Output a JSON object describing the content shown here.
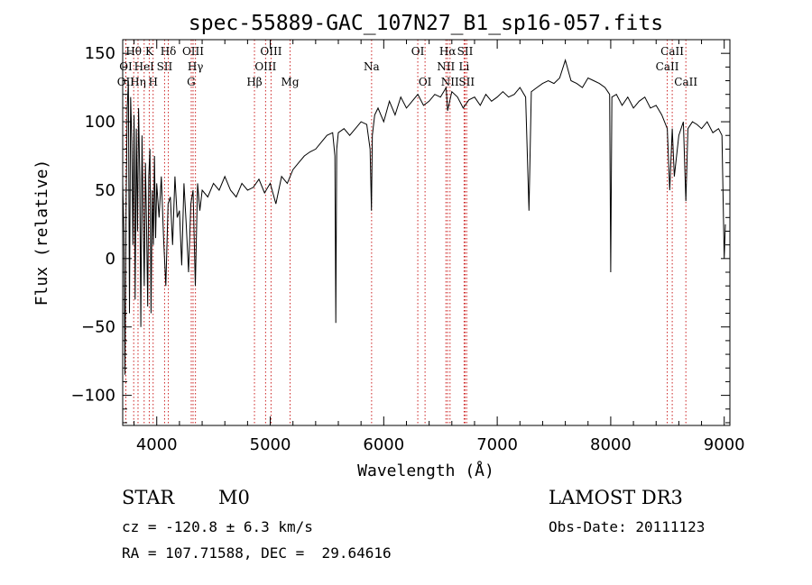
{
  "chart_data": {
    "type": "line",
    "title": "spec-55889-GAC_107N27_B1_sp16-057.fits",
    "xlabel": "Wavelength (Å)",
    "ylabel": "Flux (relative)",
    "xlim": [
      3700,
      9050
    ],
    "ylim": [
      -122,
      160
    ],
    "x_ticks": [
      4000,
      5000,
      6000,
      7000,
      8000,
      9000
    ],
    "y_ticks": [
      -100,
      -50,
      0,
      50,
      100,
      150
    ],
    "grid": false,
    "legend": "none",
    "series": [
      {
        "name": "flux",
        "x": [
          3700,
          3710,
          3720,
          3730,
          3740,
          3750,
          3760,
          3770,
          3780,
          3790,
          3800,
          3810,
          3820,
          3830,
          3840,
          3850,
          3860,
          3870,
          3880,
          3890,
          3900,
          3910,
          3920,
          3930,
          3940,
          3950,
          3960,
          3970,
          3980,
          3990,
          4000,
          4020,
          4040,
          4060,
          4080,
          4100,
          4120,
          4140,
          4160,
          4180,
          4200,
          4220,
          4240,
          4260,
          4280,
          4300,
          4320,
          4340,
          4360,
          4380,
          4400,
          4450,
          4500,
          4550,
          4600,
          4650,
          4700,
          4750,
          4800,
          4850,
          4900,
          4950,
          5000,
          5050,
          5100,
          5150,
          5200,
          5250,
          5300,
          5350,
          5400,
          5450,
          5500,
          5550,
          5570,
          5578,
          5586,
          5600,
          5650,
          5700,
          5750,
          5800,
          5850,
          5880,
          5892,
          5900,
          5920,
          5950,
          6000,
          6050,
          6100,
          6150,
          6200,
          6250,
          6300,
          6350,
          6400,
          6450,
          6500,
          6550,
          6563,
          6600,
          6650,
          6700,
          6750,
          6800,
          6850,
          6900,
          6950,
          7000,
          7050,
          7100,
          7150,
          7200,
          7250,
          7280,
          7300,
          7350,
          7400,
          7450,
          7500,
          7550,
          7600,
          7650,
          7700,
          7750,
          7800,
          7850,
          7900,
          7950,
          7990,
          8000,
          8010,
          8050,
          8100,
          8150,
          8200,
          8250,
          8300,
          8350,
          8400,
          8450,
          8498,
          8520,
          8542,
          8560,
          8600,
          8640,
          8662,
          8680,
          8720,
          8760,
          8800,
          8850,
          8900,
          8950,
          8980,
          9000,
          9010
        ],
        "values": [
          55,
          20,
          -85,
          40,
          110,
          130,
          -40,
          118,
          85,
          10,
          105,
          -30,
          95,
          20,
          110,
          60,
          -50,
          90,
          35,
          -20,
          70,
          25,
          -35,
          60,
          80,
          -40,
          50,
          10,
          75,
          15,
          55,
          30,
          60,
          15,
          -20,
          40,
          45,
          10,
          60,
          30,
          35,
          -5,
          55,
          25,
          -10,
          40,
          50,
          -20,
          55,
          35,
          50,
          45,
          55,
          50,
          60,
          50,
          45,
          55,
          50,
          52,
          58,
          48,
          55,
          40,
          60,
          55,
          65,
          70,
          75,
          78,
          80,
          85,
          90,
          92,
          75,
          -47,
          80,
          92,
          95,
          90,
          95,
          100,
          98,
          80,
          35,
          90,
          105,
          110,
          100,
          115,
          105,
          118,
          110,
          115,
          120,
          112,
          115,
          120,
          118,
          125,
          108,
          122,
          118,
          110,
          116,
          118,
          112,
          120,
          115,
          118,
          122,
          118,
          120,
          125,
          118,
          35,
          122,
          125,
          128,
          130,
          128,
          132,
          145,
          130,
          128,
          125,
          132,
          130,
          128,
          125,
          120,
          -10,
          118,
          120,
          112,
          118,
          110,
          115,
          118,
          110,
          112,
          105,
          95,
          50,
          95,
          60,
          90,
          100,
          42,
          95,
          100,
          98,
          95,
          100,
          92,
          95,
          90,
          0,
          25
        ]
      }
    ],
    "lines": [
      {
        "name": "OII",
        "wavelength": 3727,
        "row": 3
      },
      {
        "name": "OI",
        "wavelength": 3728,
        "row": 2
      },
      {
        "name": "Hθ",
        "wavelength": 3797,
        "row": 1
      },
      {
        "name": "Hη",
        "wavelength": 3835,
        "row": 3
      },
      {
        "name": "HeI",
        "wavelength": 3889,
        "row": 2
      },
      {
        "name": "K",
        "wavelength": 3934,
        "row": 1
      },
      {
        "name": "H",
        "wavelength": 3968,
        "row": 3
      },
      {
        "name": "SII",
        "wavelength": 4069,
        "row": 2
      },
      {
        "name": "Hδ",
        "wavelength": 4102,
        "row": 1
      },
      {
        "name": "G",
        "wavelength": 4304,
        "row": 3
      },
      {
        "name": "OIII",
        "wavelength": 4320,
        "row": 1
      },
      {
        "name": "Hγ",
        "wavelength": 4341,
        "row": 2
      },
      {
        "name": "Hβ",
        "wavelength": 4861,
        "row": 3
      },
      {
        "name": "OIII",
        "wavelength": 4959,
        "row": 2
      },
      {
        "name": "OIII",
        "wavelength": 5007,
        "row": 1
      },
      {
        "name": "Mg",
        "wavelength": 5175,
        "row": 3
      },
      {
        "name": "Na",
        "wavelength": 5893,
        "row": 2
      },
      {
        "name": "OI",
        "wavelength": 6300,
        "row": 1
      },
      {
        "name": "OI",
        "wavelength": 6364,
        "row": 3
      },
      {
        "name": "NII",
        "wavelength": 6548,
        "row": 2
      },
      {
        "name": "Hα",
        "wavelength": 6563,
        "row": 1
      },
      {
        "name": "NII",
        "wavelength": 6584,
        "row": 3
      },
      {
        "name": "Li",
        "wavelength": 6708,
        "row": 2
      },
      {
        "name": "SII",
        "wavelength": 6717,
        "row": 1
      },
      {
        "name": "SII",
        "wavelength": 6731,
        "row": 3
      },
      {
        "name": "CaII",
        "wavelength": 8498,
        "row": 2
      },
      {
        "name": "CaII",
        "wavelength": 8542,
        "row": 1
      },
      {
        "name": "CaII",
        "wavelength": 8662,
        "row": 3
      }
    ]
  },
  "info": {
    "class_label": "STAR",
    "subclass": "M0",
    "survey": "LAMOST DR3",
    "cz": "cz = -120.8 ± 6.3 km/s",
    "obs_date": "Obs-Date: 20111123",
    "coords": "RA = 107.71588, DEC =  29.64616"
  }
}
